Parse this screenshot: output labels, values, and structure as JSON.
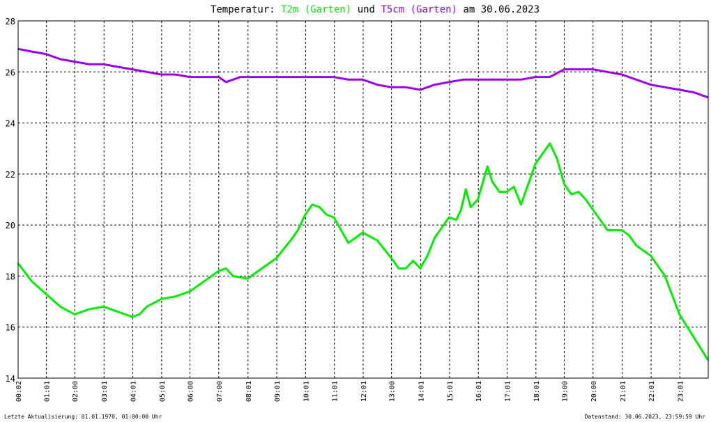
{
  "title": {
    "prefix": "Temperatur:",
    "series1_label": "T2m (Garten)",
    "connector": "und",
    "series2_label": "T5cm (Garten)",
    "suffix": "am 30.06.2023"
  },
  "colors": {
    "series1": "#00ee00",
    "series2": "#9900ee",
    "grid": "#000000",
    "axis": "#000000"
  },
  "footer": {
    "left": "Letzte Aktualisierung: 01.01.1970, 01:00:00 Uhr",
    "right": "Datenstand: 30.06.2023, 23:59:59 Uhr"
  },
  "chart_data": {
    "type": "line",
    "ylim": [
      14,
      28
    ],
    "yticks": [
      "14",
      "16",
      "18",
      "20",
      "22",
      "24",
      "26",
      "28"
    ],
    "xlim": [
      "00:02",
      "24:00"
    ],
    "xtick_labels": [
      "00:02",
      "01:01",
      "02:00",
      "03:01",
      "04:01",
      "05:01",
      "06:00",
      "07:00",
      "08:01",
      "09:01",
      "10:01",
      "11:01",
      "12:01",
      "13:00",
      "14:01",
      "15:01",
      "16:01",
      "17:01",
      "18:01",
      "19:00",
      "20:00",
      "21:01",
      "22:01",
      "23:01"
    ],
    "grid": true,
    "series": [
      {
        "name": "T2m (Garten)",
        "x": [
          "00:02",
          "00:30",
          "01:00",
          "01:30",
          "02:00",
          "02:15",
          "02:30",
          "03:00",
          "03:15",
          "03:30",
          "04:00",
          "04:15",
          "04:30",
          "05:00",
          "05:30",
          "06:00",
          "06:30",
          "07:00",
          "07:15",
          "07:30",
          "08:00",
          "08:30",
          "09:00",
          "09:30",
          "09:45",
          "10:00",
          "10:15",
          "10:30",
          "10:45",
          "11:00",
          "11:15",
          "11:30",
          "11:45",
          "12:00",
          "12:30",
          "13:00",
          "13:15",
          "13:30",
          "13:45",
          "14:00",
          "14:15",
          "14:30",
          "15:00",
          "15:15",
          "15:25",
          "15:35",
          "15:45",
          "16:00",
          "16:20",
          "16:30",
          "16:45",
          "17:00",
          "17:15",
          "17:30",
          "17:45",
          "18:00",
          "18:15",
          "18:30",
          "18:45",
          "19:00",
          "19:15",
          "19:30",
          "19:45",
          "20:00",
          "20:15",
          "20:30",
          "21:00",
          "21:15",
          "21:30",
          "22:00",
          "22:30",
          "23:00",
          "23:30",
          "24:00"
        ],
        "y": [
          18.5,
          17.8,
          17.3,
          16.8,
          16.5,
          16.6,
          16.7,
          16.8,
          16.7,
          16.6,
          16.4,
          16.5,
          16.8,
          17.1,
          17.2,
          17.4,
          17.8,
          18.2,
          18.3,
          18.0,
          17.9,
          18.3,
          18.7,
          19.4,
          19.8,
          20.4,
          20.8,
          20.7,
          20.4,
          20.3,
          19.8,
          19.3,
          19.5,
          19.7,
          19.4,
          18.7,
          18.3,
          18.3,
          18.6,
          18.3,
          18.8,
          19.5,
          20.3,
          20.2,
          20.6,
          21.4,
          20.7,
          21.0,
          22.3,
          21.7,
          21.3,
          21.3,
          21.5,
          20.8,
          21.6,
          22.4,
          22.8,
          23.2,
          22.6,
          21.6,
          21.2,
          21.3,
          21.0,
          20.6,
          20.2,
          19.8,
          19.8,
          19.6,
          19.2,
          18.8,
          18.0,
          16.5,
          15.6,
          14.7
        ]
      },
      {
        "name": "T5cm (Garten)",
        "x": [
          "00:02",
          "00:30",
          "01:00",
          "01:30",
          "02:00",
          "02:30",
          "03:00",
          "03:30",
          "04:00",
          "04:30",
          "05:00",
          "05:30",
          "06:00",
          "06:30",
          "07:00",
          "07:15",
          "07:30",
          "07:45",
          "08:00",
          "09:00",
          "10:00",
          "11:00",
          "11:30",
          "12:00",
          "12:30",
          "13:00",
          "13:30",
          "14:00",
          "14:30",
          "15:00",
          "15:30",
          "16:00",
          "16:30",
          "17:00",
          "17:30",
          "18:00",
          "18:30",
          "19:00",
          "19:30",
          "20:00",
          "20:30",
          "21:00",
          "21:30",
          "22:00",
          "22:30",
          "23:00",
          "23:30",
          "24:00"
        ],
        "y": [
          26.9,
          26.8,
          26.7,
          26.5,
          26.4,
          26.3,
          26.3,
          26.2,
          26.1,
          26.0,
          25.9,
          25.9,
          25.8,
          25.8,
          25.8,
          25.6,
          25.7,
          25.8,
          25.8,
          25.8,
          25.8,
          25.8,
          25.7,
          25.7,
          25.5,
          25.4,
          25.4,
          25.3,
          25.5,
          25.6,
          25.7,
          25.7,
          25.7,
          25.7,
          25.7,
          25.8,
          25.8,
          26.1,
          26.1,
          26.1,
          26.0,
          25.9,
          25.7,
          25.5,
          25.4,
          25.3,
          25.2,
          25.0
        ]
      }
    ]
  }
}
